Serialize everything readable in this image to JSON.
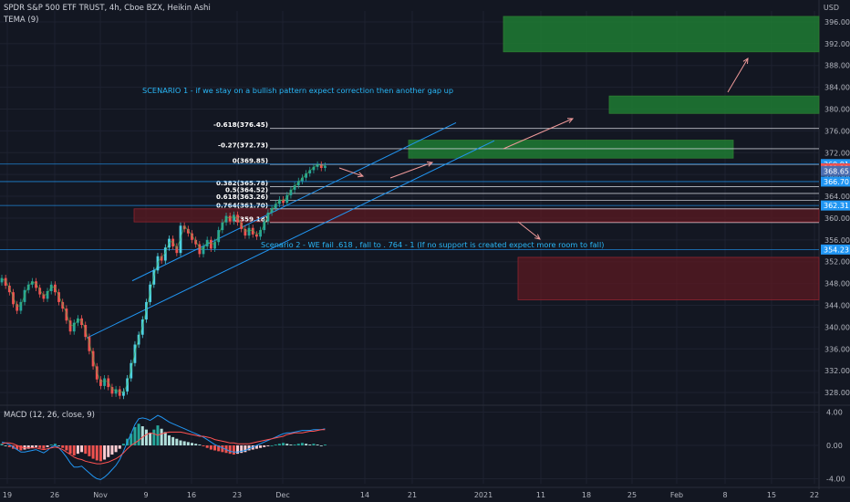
{
  "header": {
    "title": "SPDR S&P 500 ETF TRUST, 4h, Cboe BZX, Heikin Ashi",
    "indicator": "TEMA (9)",
    "currency": "USD",
    "macd_title": "MACD (12, 26, close, 9)"
  },
  "annotations": {
    "scenario1": "SCENARIO 1 - if we stay on a bullish pattern expect correction then another gap up",
    "scenario2": "Scenario 2 - WE fail .618 , fall to . 764 - 1 (If no support is created expect more room to fall)"
  },
  "colors": {
    "background": "#131722",
    "up": "#26a69a",
    "up_light": "#4dd0e1",
    "down": "#ef5350",
    "macd_line": "#2196f3",
    "signal_line": "#ff5252",
    "green_zone": "#1e7b32",
    "red_zone": "#5b1a22",
    "note_text": "#29b6f6"
  },
  "chart_data": [
    {
      "type": "candlestick",
      "title": "SPDR S&P 500 ETF TRUST, 4h, Cboe BZX, Heikin Ashi",
      "ylim": [
        326,
        398
      ],
      "y_ticks": [
        328,
        332,
        336,
        340,
        344,
        348,
        352,
        356,
        360,
        364,
        368,
        372,
        376,
        380,
        384,
        388,
        392,
        396
      ],
      "x_ticks": [
        "19",
        "26",
        "Nov",
        "9",
        "16",
        "23",
        "Dec",
        "14",
        "21",
        "2021",
        "11",
        "18",
        "25",
        "Feb",
        "8",
        "15",
        "22"
      ],
      "price_labels": [
        {
          "label": "369.91",
          "value": 369.91,
          "color": "#2196f3"
        },
        {
          "label": "369.12",
          "value": 369.12,
          "color": "#ef5350"
        },
        {
          "label": "368.65",
          "value": 368.65,
          "color": "#4a6db0"
        },
        {
          "label": "366.70",
          "value": 366.7,
          "color": "#2196f3"
        },
        {
          "label": "362.31",
          "value": 362.31,
          "color": "#2196f3"
        },
        {
          "label": "354.23",
          "value": 354.23,
          "color": "#2196f3"
        }
      ],
      "fib_levels": [
        {
          "label": "-0.618(376.45)",
          "value": 376.45
        },
        {
          "label": "-0.27(372.73)",
          "value": 372.73
        },
        {
          "label": "0(369.85)",
          "value": 369.85
        },
        {
          "label": "0.382(365.78)",
          "value": 365.78
        },
        {
          "label": "0.5(364.52)",
          "value": 364.52
        },
        {
          "label": "0.618(363.26)",
          "value": 363.26
        },
        {
          "label": "0.764(361.70)",
          "value": 361.7
        },
        {
          "label": "1(359.18)",
          "value": 359.18
        }
      ],
      "zones": [
        {
          "kind": "green",
          "from": 390.5,
          "to": 397
        },
        {
          "kind": "green",
          "from": 379.2,
          "to": 382.4
        },
        {
          "kind": "green",
          "from": 371.0,
          "to": 374.3
        },
        {
          "kind": "red",
          "from": 359.3,
          "to": 361.7
        },
        {
          "kind": "red",
          "from": 345.0,
          "to": 352.8
        }
      ],
      "candles": [
        {
          "o": 348.2,
          "c": 349.0
        },
        {
          "o": 349.0,
          "c": 347.6
        },
        {
          "o": 347.6,
          "c": 346.4
        },
        {
          "o": 346.4,
          "c": 344.2
        },
        {
          "o": 344.2,
          "c": 343.0
        },
        {
          "o": 343.0,
          "c": 344.6
        },
        {
          "o": 344.6,
          "c": 346.8
        },
        {
          "o": 346.8,
          "c": 347.8
        },
        {
          "o": 347.8,
          "c": 348.4
        },
        {
          "o": 348.4,
          "c": 347.2
        },
        {
          "o": 347.2,
          "c": 346.0
        },
        {
          "o": 346.0,
          "c": 345.2
        },
        {
          "o": 345.2,
          "c": 346.6
        },
        {
          "o": 346.6,
          "c": 347.8
        },
        {
          "o": 347.8,
          "c": 346.4
        },
        {
          "o": 346.4,
          "c": 344.6
        },
        {
          "o": 344.6,
          "c": 343.4
        },
        {
          "o": 343.4,
          "c": 341.2
        },
        {
          "o": 341.2,
          "c": 339.2
        },
        {
          "o": 339.2,
          "c": 340.8
        },
        {
          "o": 340.8,
          "c": 341.6
        },
        {
          "o": 341.6,
          "c": 340.4
        },
        {
          "o": 340.4,
          "c": 338.2
        },
        {
          "o": 338.2,
          "c": 335.6
        },
        {
          "o": 335.6,
          "c": 332.8
        },
        {
          "o": 332.8,
          "c": 330.4
        },
        {
          "o": 330.4,
          "c": 329.2
        },
        {
          "o": 329.2,
          "c": 330.6
        },
        {
          "o": 330.6,
          "c": 329.0
        },
        {
          "o": 329.0,
          "c": 327.8
        },
        {
          "o": 327.8,
          "c": 328.6
        },
        {
          "o": 328.6,
          "c": 327.4
        },
        {
          "o": 327.4,
          "c": 328.2
        },
        {
          "o": 328.2,
          "c": 330.6
        },
        {
          "o": 330.6,
          "c": 333.4
        },
        {
          "o": 333.4,
          "c": 336.8
        },
        {
          "o": 336.8,
          "c": 338.6
        },
        {
          "o": 338.6,
          "c": 341.4
        },
        {
          "o": 341.4,
          "c": 344.6
        },
        {
          "o": 344.6,
          "c": 347.8
        },
        {
          "o": 347.8,
          "c": 350.4
        },
        {
          "o": 350.4,
          "c": 353.0
        },
        {
          "o": 353.0,
          "c": 352.2
        },
        {
          "o": 352.2,
          "c": 354.6
        },
        {
          "o": 354.6,
          "c": 356.2
        },
        {
          "o": 356.2,
          "c": 354.8
        },
        {
          "o": 354.8,
          "c": 353.6
        },
        {
          "o": 353.6,
          "c": 358.6
        },
        {
          "o": 358.6,
          "c": 358.0
        },
        {
          "o": 358.0,
          "c": 357.2
        },
        {
          "o": 357.2,
          "c": 356.0
        },
        {
          "o": 356.0,
          "c": 355.2
        },
        {
          "o": 355.2,
          "c": 353.4
        },
        {
          "o": 353.4,
          "c": 354.8
        },
        {
          "o": 354.8,
          "c": 356.0
        },
        {
          "o": 356.0,
          "c": 354.4
        },
        {
          "o": 354.4,
          "c": 355.6
        },
        {
          "o": 355.6,
          "c": 357.8
        },
        {
          "o": 357.8,
          "c": 359.2
        },
        {
          "o": 359.2,
          "c": 360.4
        },
        {
          "o": 360.4,
          "c": 359.4
        },
        {
          "o": 359.4,
          "c": 360.6
        },
        {
          "o": 360.6,
          "c": 359.2
        },
        {
          "o": 359.2,
          "c": 358.0
        },
        {
          "o": 358.0,
          "c": 356.8
        },
        {
          "o": 356.8,
          "c": 358.2
        },
        {
          "o": 358.2,
          "c": 357.0
        },
        {
          "o": 357.0,
          "c": 356.6
        },
        {
          "o": 356.6,
          "c": 357.8
        },
        {
          "o": 357.8,
          "c": 359.4
        },
        {
          "o": 359.4,
          "c": 361.0
        },
        {
          "o": 361.0,
          "c": 361.8
        },
        {
          "o": 361.8,
          "c": 362.6
        },
        {
          "o": 362.6,
          "c": 363.4
        },
        {
          "o": 363.4,
          "c": 362.8
        },
        {
          "o": 362.8,
          "c": 364.2
        },
        {
          "o": 364.2,
          "c": 365.2
        },
        {
          "o": 365.2,
          "c": 366.0
        },
        {
          "o": 366.0,
          "c": 366.8
        },
        {
          "o": 366.8,
          "c": 367.4
        },
        {
          "o": 367.4,
          "c": 368.2
        },
        {
          "o": 368.2,
          "c": 368.8
        },
        {
          "o": 368.8,
          "c": 369.4
        },
        {
          "o": 369.4,
          "c": 369.8
        },
        {
          "o": 369.8,
          "c": 369.2
        },
        {
          "o": 369.2,
          "c": 369.6
        }
      ],
      "xlabel": "",
      "ylabel": ""
    },
    {
      "type": "histogram",
      "title": "MACD (12, 26, close, 9)",
      "ylim": [
        -4.6,
        4.6
      ],
      "y_ticks": [
        4.0,
        0.0,
        -4.0
      ],
      "y_tick_labels": [
        "4.00",
        "0.00",
        "-4.00"
      ],
      "histogram": [
        0.2,
        0.0,
        -0.2,
        -0.4,
        -0.5,
        -0.6,
        -0.5,
        -0.4,
        -0.3,
        -0.2,
        -0.3,
        -0.4,
        -0.2,
        0.1,
        0.2,
        0.0,
        -0.3,
        -0.6,
        -1.0,
        -1.2,
        -1.0,
        -0.8,
        -1.0,
        -1.3,
        -1.6,
        -1.8,
        -1.9,
        -1.7,
        -1.4,
        -1.1,
        -0.8,
        -0.4,
        0.2,
        0.8,
        1.4,
        2.2,
        2.6,
        2.3,
        1.9,
        1.5,
        1.9,
        2.4,
        2.0,
        1.6,
        1.2,
        1.0,
        0.8,
        0.6,
        0.5,
        0.4,
        0.3,
        0.2,
        0.1,
        -0.1,
        -0.3,
        -0.5,
        -0.6,
        -0.7,
        -0.8,
        -0.9,
        -1.0,
        -1.1,
        -1.0,
        -0.9,
        -0.8,
        -0.6,
        -0.5,
        -0.4,
        -0.3,
        -0.2,
        -0.1,
        0.0,
        0.1,
        0.2,
        0.3,
        0.2,
        0.1,
        0.1,
        0.2,
        0.3,
        0.2,
        0.1,
        0.2,
        0.1,
        0.0,
        0.1
      ],
      "macd_line": [
        0.4,
        0.3,
        0.1,
        -0.2,
        -0.5,
        -0.8,
        -0.8,
        -0.7,
        -0.6,
        -0.5,
        -0.7,
        -0.9,
        -0.6,
        -0.2,
        0.0,
        -0.3,
        -0.8,
        -1.4,
        -2.1,
        -2.6,
        -2.6,
        -2.5,
        -2.9,
        -3.3,
        -3.7,
        -4.0,
        -4.1,
        -3.8,
        -3.4,
        -2.9,
        -2.4,
        -1.7,
        -0.7,
        0.4,
        1.4,
        2.5,
        3.2,
        3.3,
        3.2,
        3.0,
        3.3,
        3.6,
        3.4,
        3.1,
        2.8,
        2.6,
        2.4,
        2.2,
        2.0,
        1.8,
        1.6,
        1.4,
        1.2,
        1.0,
        0.7,
        0.4,
        0.1,
        -0.1,
        -0.3,
        -0.5,
        -0.7,
        -0.8,
        -0.8,
        -0.7,
        -0.6,
        -0.4,
        -0.2,
        0.0,
        0.2,
        0.4,
        0.6,
        0.8,
        1.0,
        1.2,
        1.4,
        1.5,
        1.5,
        1.6,
        1.7,
        1.8,
        1.8,
        1.8,
        1.9,
        1.9,
        1.9,
        2.0
      ],
      "signal_line": [
        0.2,
        0.3,
        0.3,
        0.2,
        0.0,
        -0.2,
        -0.3,
        -0.3,
        -0.3,
        -0.3,
        -0.4,
        -0.5,
        -0.4,
        -0.3,
        -0.2,
        -0.3,
        -0.5,
        -0.8,
        -1.1,
        -1.4,
        -1.6,
        -1.7,
        -1.9,
        -2.0,
        -2.1,
        -2.2,
        -2.2,
        -2.1,
        -2.0,
        -1.8,
        -1.6,
        -1.3,
        -0.9,
        -0.4,
        0.0,
        0.3,
        0.6,
        1.0,
        1.3,
        1.5,
        1.4,
        1.2,
        1.4,
        1.5,
        1.6,
        1.6,
        1.6,
        1.6,
        1.5,
        1.4,
        1.3,
        1.2,
        1.1,
        1.1,
        1.0,
        0.9,
        0.7,
        0.6,
        0.5,
        0.4,
        0.3,
        0.3,
        0.2,
        0.2,
        0.2,
        0.2,
        0.3,
        0.4,
        0.5,
        0.6,
        0.7,
        0.8,
        0.9,
        1.0,
        1.1,
        1.3,
        1.4,
        1.5,
        1.5,
        1.5,
        1.6,
        1.7,
        1.7,
        1.8,
        1.9,
        1.9
      ],
      "legend": ""
    }
  ]
}
